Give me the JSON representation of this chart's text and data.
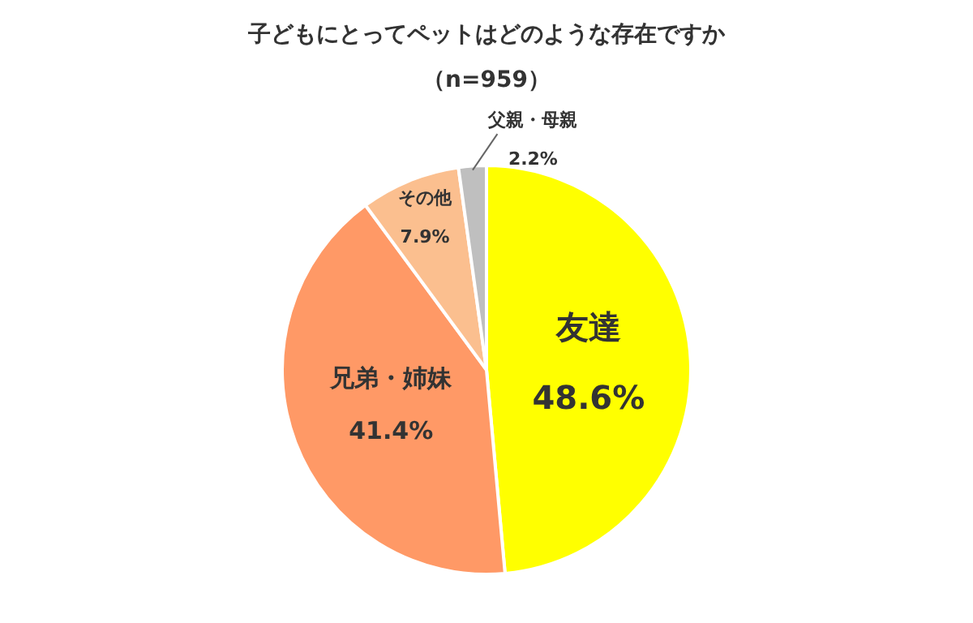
{
  "chart_data": {
    "type": "pie",
    "title": "子どもにとってペットはどのような存在ですか",
    "subtitle": "（n=959）",
    "categories": [
      "友達",
      "兄弟・姉妹",
      "その他",
      "父親・母親"
    ],
    "values": [
      48.6,
      41.4,
      7.9,
      2.2
    ],
    "colors": [
      "#ffff00",
      "#ff9966",
      "#fbbf8f",
      "#bfbfbf"
    ],
    "value_labels": [
      "48.6%",
      "41.4%",
      "7.9%",
      "2.2%"
    ],
    "legend": false
  }
}
